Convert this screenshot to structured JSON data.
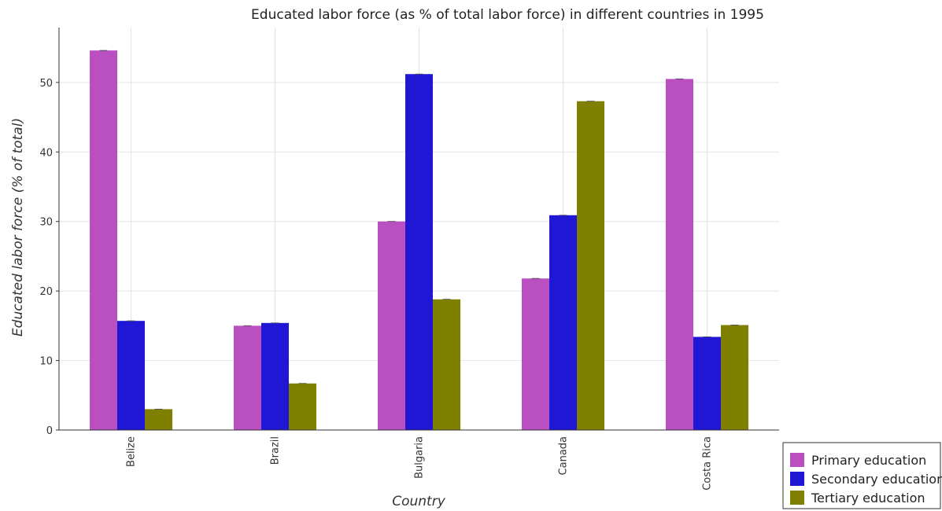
{
  "chart_data": {
    "type": "bar",
    "title": "Educated labor force (as % of total labor force) in different countries in 1995",
    "xlabel": "Country",
    "ylabel": "Educated labor force (% of total)",
    "categories": [
      "Belize",
      "Brazil",
      "Bulgaria",
      "Canada",
      "Costa Rica"
    ],
    "series": [
      {
        "name": "Primary education",
        "color": "#b94fc1",
        "values": [
          54.6,
          15.0,
          30.0,
          21.8,
          50.5
        ]
      },
      {
        "name": "Secondary education",
        "color": "#1f17d4",
        "values": [
          15.7,
          15.4,
          51.2,
          30.9,
          13.4
        ]
      },
      {
        "name": "Tertiary education",
        "color": "#808000",
        "values": [
          3.0,
          6.7,
          18.8,
          47.3,
          15.1
        ]
      }
    ],
    "ylim": [
      0,
      57.9
    ],
    "yticks": [
      0,
      10,
      20,
      30,
      40,
      50
    ],
    "grid": true,
    "legend_position": "bottom-right"
  }
}
